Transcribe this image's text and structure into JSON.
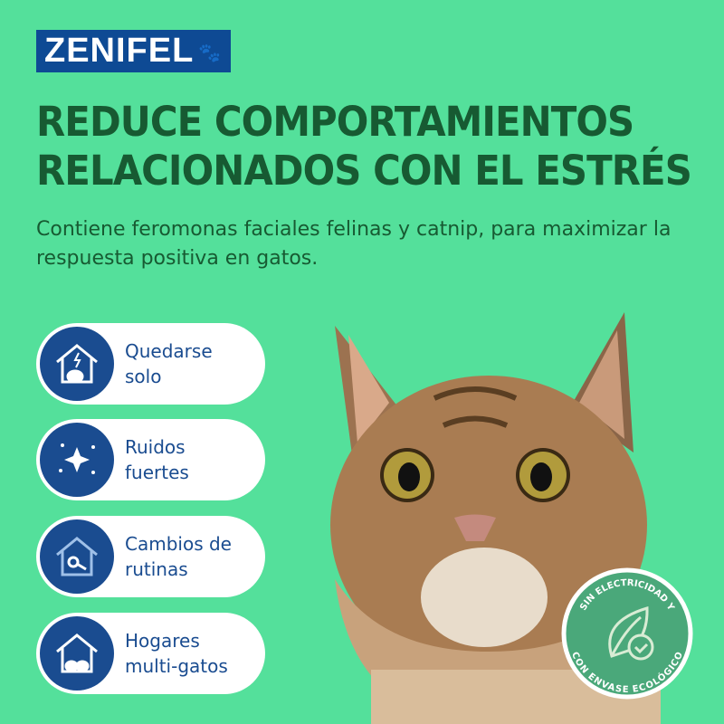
{
  "brand": {
    "name": "ZENIFEL",
    "color": "#0e4a94"
  },
  "headline": {
    "line1": "REDUCE COMPORTAMIENTOS",
    "line2": "RELACIONADOS CON EL ESTRÉS"
  },
  "subtitle": "Contiene feromonas faciales felinas y catnip, para maximizar la respuesta positiva en gatos.",
  "features": [
    {
      "icon": "house-lightning-cat-icon",
      "line1": "Quedarse",
      "line2": "solo"
    },
    {
      "icon": "sparkle-noise-icon",
      "line1": "Ruidos",
      "line2": "fuertes"
    },
    {
      "icon": "house-keys-icon",
      "line1": "Cambios de",
      "line2": "rutinas"
    },
    {
      "icon": "house-multi-cat-icon",
      "line1": "Hogares",
      "line2": "multi-gatos"
    }
  ],
  "badge": {
    "top": "SIN ELECTRICIDAD Y",
    "bottom": "CON ENVASE ECOLÓGICO",
    "icon": "leaf-check-icon"
  },
  "colors": {
    "background": "#54e09b",
    "headline": "#175a32",
    "icon_bg": "#1a4c90",
    "badge": "#4aa87a"
  }
}
